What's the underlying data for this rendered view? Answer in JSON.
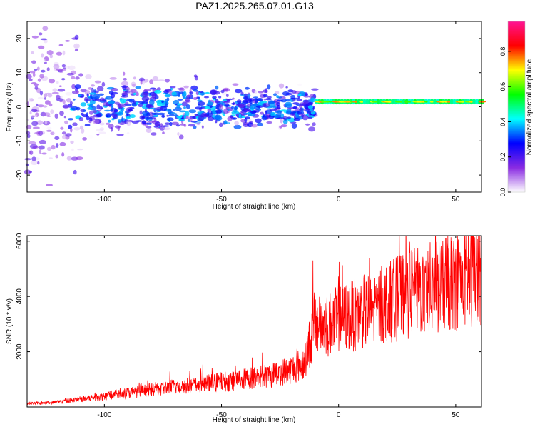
{
  "figure_title": "PAZ1.2025.265.07.01.G13",
  "chart_data": [
    {
      "type": "heatmap",
      "xlabel": "Height of straight line (km)",
      "ylabel": "Frequency (Hz)",
      "xlim": [
        -133,
        61
      ],
      "ylim": [
        -25,
        25
      ],
      "xticks": [
        -100,
        -50,
        0,
        50
      ],
      "yticks": [
        -20,
        -10,
        0,
        10,
        20
      ],
      "xtick_labels": [
        "-100",
        "-50",
        "0",
        "50"
      ],
      "ytick_labels": [
        "-20",
        "-10",
        "0",
        "10",
        "20"
      ],
      "colorbar": {
        "label": "Normalized spectral amplitude",
        "range": [
          0,
          0.97
        ],
        "ticks": [
          0,
          0.2,
          0.4,
          0.6,
          0.8
        ],
        "tick_labels": [
          "0.0",
          "0.2",
          "0.4",
          "0.6",
          "0.8"
        ],
        "colors": [
          "#ffffff",
          "#8a2be2",
          "#0000ff",
          "#00ffff",
          "#00ff00",
          "#ffff00",
          "#ff0000",
          "#ff1493"
        ]
      },
      "features": {
        "carrier_line": {
          "x_start": -10,
          "x_end": 61,
          "frequency": 1.5,
          "amplitude": 0.8
        },
        "noise_cloud": {
          "x_start": -133,
          "x_end": -10,
          "frequency_spread": 25,
          "amplitude_max": 0.4
        }
      }
    },
    {
      "type": "line",
      "xlabel": "Height of straight line (km)",
      "ylabel": "SNR (10 * v/v)",
      "xlim": [
        -133,
        61
      ],
      "ylim": [
        0,
        6200
      ],
      "xticks": [
        -100,
        -50,
        0,
        50
      ],
      "yticks": [
        2000,
        4000,
        6000
      ],
      "xtick_labels": [
        "-100",
        "-50",
        "0",
        "50"
      ],
      "ytick_labels": [
        "2000",
        "4000",
        "6000"
      ],
      "series": [
        {
          "name": "SNR",
          "color": "#ff0000",
          "envelope": {
            "x": [
              -133,
              -120,
              -110,
              -100,
              -90,
              -80,
              -70,
              -60,
              -50,
              -40,
              -30,
              -20,
              -15,
              -10,
              -5,
              0,
              10,
              20,
              30,
              40,
              50,
              55,
              60,
              61
            ],
            "y": [
              100,
              150,
              250,
              350,
              450,
              550,
              650,
              700,
              800,
              900,
              1000,
              1200,
              1400,
              2600,
              2600,
              2800,
              3000,
              3300,
              3600,
              3800,
              4000,
              4100,
              4300,
              4300
            ]
          },
          "notable_peaks": [
            {
              "x": -11,
              "y": 5300
            },
            {
              "x": 46,
              "y": 6100
            },
            {
              "x": 59,
              "y": 6200
            }
          ]
        }
      ]
    }
  ]
}
